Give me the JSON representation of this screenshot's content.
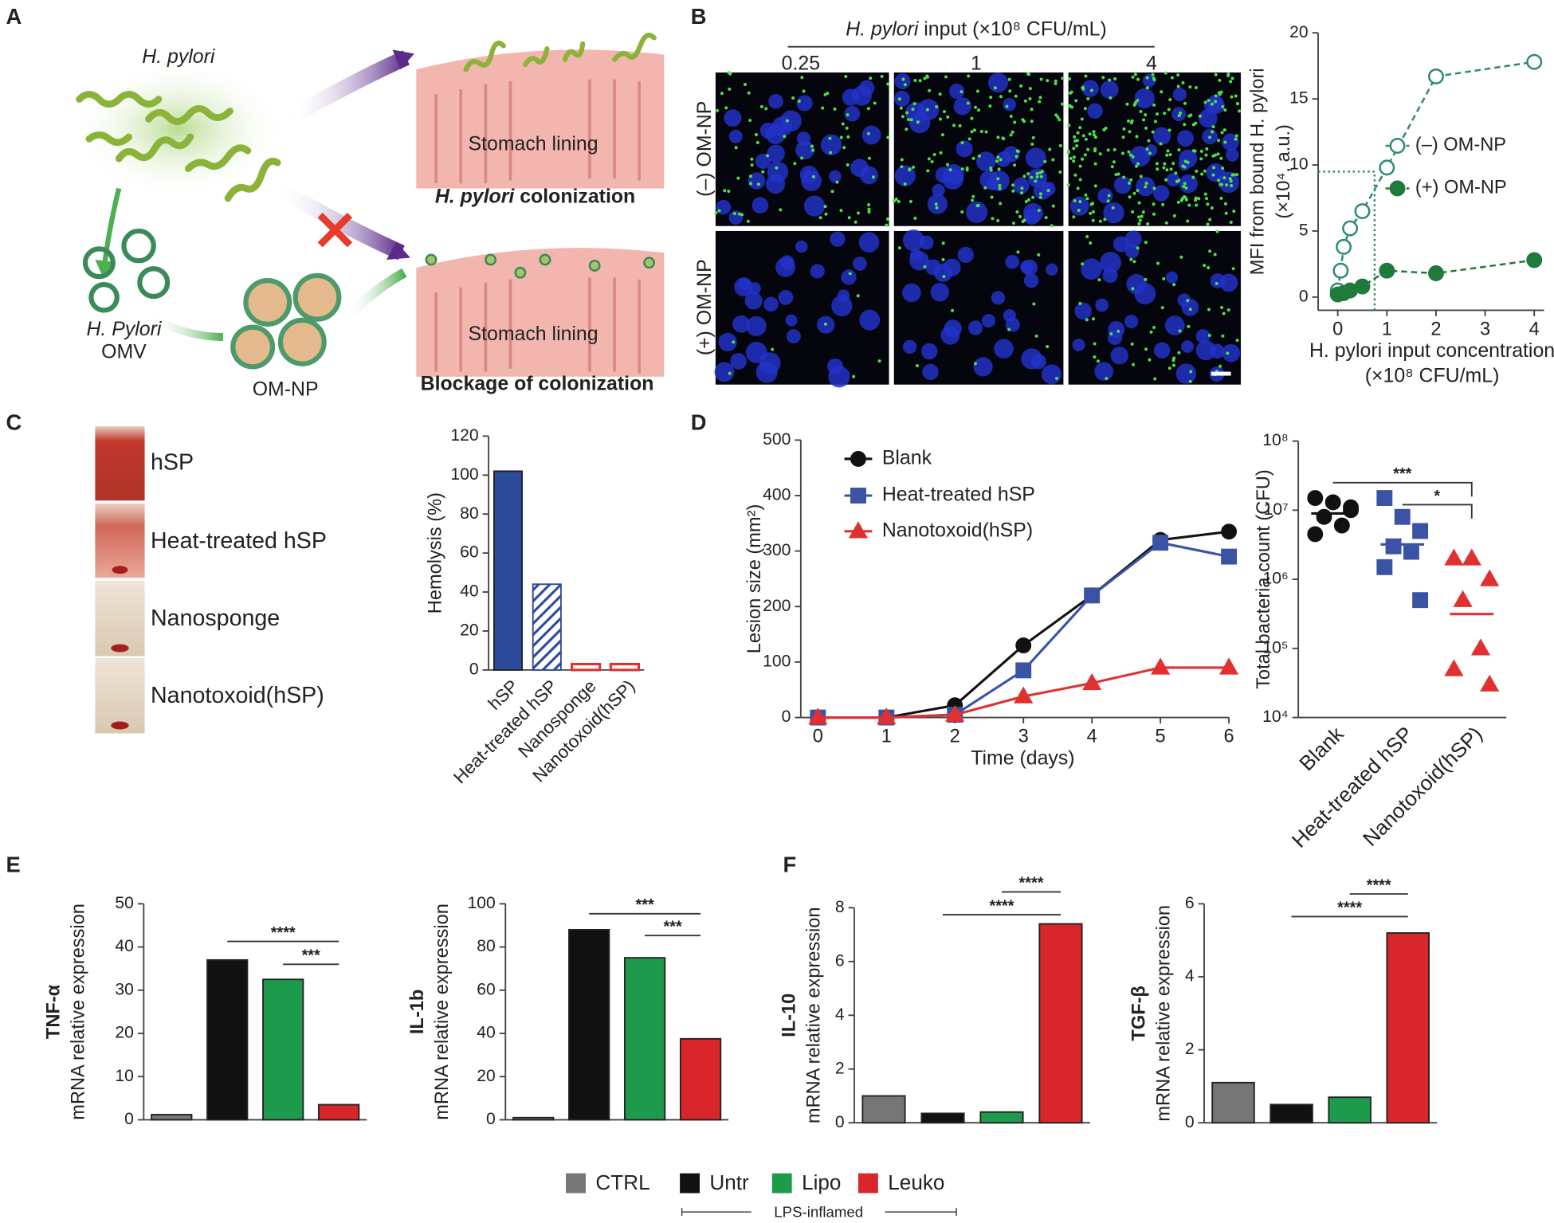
{
  "labels": {
    "panels": [
      "A",
      "B",
      "C",
      "D",
      "E",
      "F"
    ],
    "a": {
      "bacteria": "H. pylori",
      "omv": [
        "H. Pylori",
        "OMV"
      ],
      "omnp": "OM-NP",
      "lining_top": "Stomach lining",
      "lining_bottom": "Stomach lining",
      "colonization_species": "H. pylori",
      "colonization": " colonization",
      "blockage": "Blockage of colonization"
    },
    "b": {
      "input_species": "H. pylori",
      "input": " input (×10⁸ CFU/mL)",
      "columns": [
        "0.25",
        "1",
        "4"
      ],
      "rows": [
        "(–) OM-NP",
        "(+) OM-NP"
      ]
    },
    "c": {
      "tubes": [
        "hSP",
        "Heat-treated hSP",
        "Nanosponge",
        "Nanotoxoid(hSP)"
      ]
    }
  },
  "legend": {
    "items": [
      {
        "name": "CTRL",
        "color": "#767676"
      },
      {
        "name": "Untr",
        "color": "#111111"
      },
      {
        "name": "Lipo",
        "color": "#1e9a4c"
      },
      {
        "name": "Leuko",
        "color": "#d9262b"
      }
    ],
    "note": "LPS-inflamed"
  },
  "chart_data": [
    {
      "type": "scatter",
      "ylabel": [
        "MFI from bound H. pylori",
        "(×10⁴, a.u.)"
      ],
      "xlabel": [
        "H. pylori input concentration",
        "(×10⁸ CFU/mL)"
      ],
      "xlim": [
        -0.4,
        4.2
      ],
      "xticks": [
        0,
        1,
        2,
        3,
        4
      ],
      "ylim": [
        -1,
        20
      ],
      "yticks": [
        0,
        5,
        10,
        15,
        20
      ],
      "reference": {
        "x": 0.75,
        "y": 9.5
      },
      "series": [
        {
          "name": "(–) OM-NP",
          "color": "#2e8b6e",
          "filled": false,
          "x": [
            0,
            0.06,
            0.12,
            0.25,
            0.5,
            1,
            2,
            4
          ],
          "values": [
            0.5,
            2,
            3.8,
            5.2,
            6.5,
            9.8,
            16.7,
            17.8
          ]
        },
        {
          "name": "(+) OM-NP",
          "color": "#1f7a3c",
          "filled": true,
          "x": [
            0,
            0.12,
            0.25,
            0.5,
            1,
            2,
            4
          ],
          "values": [
            0.2,
            0.3,
            0.5,
            0.8,
            2,
            1.8,
            2.8
          ]
        }
      ]
    },
    {
      "type": "bar",
      "ylabel": "Hemolysis (%)",
      "categories": [
        "hSP",
        "Heat-treated hSP",
        "Nanosponge",
        "Nanotoxoid(hSP)"
      ],
      "values": [
        102,
        44,
        3,
        3
      ],
      "colors": [
        "#2b4a9a",
        "#2b4a9a",
        "#e03030",
        "#e03030"
      ],
      "fill_styles": [
        "solid",
        "hatch",
        "outline",
        "outline"
      ],
      "ylim": [
        0,
        120
      ],
      "yticks": [
        0,
        20,
        40,
        60,
        80,
        100,
        120
      ]
    },
    {
      "type": "line",
      "ylabel": "Lesion size (mm²)",
      "xlabel": "Time (days)",
      "x": [
        0,
        1,
        2,
        3,
        4,
        5,
        6
      ],
      "xlim": [
        -0.25,
        6
      ],
      "xticks": [
        0,
        1,
        2,
        3,
        4,
        5,
        6
      ],
      "ylim": [
        0,
        500
      ],
      "yticks": [
        0,
        100,
        200,
        300,
        400,
        500
      ],
      "series": [
        {
          "name": "Blank",
          "color": "#111111",
          "marker": "circle",
          "values": [
            0,
            0,
            22,
            130,
            220,
            320,
            335
          ]
        },
        {
          "name": "Heat-treated hSP",
          "color": "#3a53a4",
          "marker": "square",
          "values": [
            0,
            0,
            5,
            85,
            220,
            315,
            290
          ]
        },
        {
          "name": "Nanotoxoid(hSP)",
          "color": "#e03030",
          "marker": "triangle",
          "values": [
            0,
            0,
            5,
            38,
            62,
            90,
            90
          ]
        }
      ]
    },
    {
      "type": "strip",
      "log_y": true,
      "ylabel": "Total bacteria count (CFU)",
      "categories": [
        "Blank",
        "Heat-treated hSP",
        "Nanotoxoid(hSP)"
      ],
      "ylim": [
        10000,
        100000000
      ],
      "yticks": [
        {
          "value": 10000,
          "label": "10⁴"
        },
        {
          "value": 100000,
          "label": "10⁵"
        },
        {
          "value": 1000000,
          "label": "10⁶"
        },
        {
          "value": 10000000,
          "label": "10⁷"
        },
        {
          "value": 100000000,
          "label": "10⁸"
        }
      ],
      "series": [
        {
          "name": "Blank",
          "color": "#111111",
          "marker": "circle",
          "values": [
            15000000,
            13000000,
            10000000,
            8000000,
            6000000,
            4500000,
            11000000
          ]
        },
        {
          "name": "Heat-treated hSP",
          "color": "#3a53a4",
          "marker": "square",
          "values": [
            15000000,
            8000000,
            5000000,
            3000000,
            2500000,
            1500000,
            500000
          ]
        },
        {
          "name": "Nanotoxoid(hSP)",
          "color": "#e03030",
          "marker": "triangle",
          "values": [
            2000000,
            2000000,
            1000000,
            500000,
            100000,
            50000,
            30000
          ]
        }
      ],
      "annotations": [
        {
          "text": "***",
          "from": 0,
          "to": 2,
          "y": 25000000
        },
        {
          "text": "*",
          "from": 1,
          "to": 2,
          "y": 12000000
        }
      ]
    },
    {
      "type": "bar",
      "ylabel": [
        "TNF-α",
        "mRNA relative expression"
      ],
      "values": [
        1.2,
        37,
        32.5,
        3.5
      ],
      "ylim": [
        0,
        50
      ],
      "yticks": [
        0,
        10,
        20,
        30,
        40,
        50
      ],
      "annotations": [
        {
          "text": "****",
          "from": 1,
          "to": 3,
          "y": 41.3
        },
        {
          "text": "***",
          "from": 2,
          "to": 3,
          "y": 36
        }
      ]
    },
    {
      "type": "bar",
      "ylabel": [
        "IL-1b",
        "mRNA relative expression"
      ],
      "values": [
        1,
        88,
        75,
        37.5
      ],
      "ylim": [
        0,
        100
      ],
      "yticks": [
        0,
        20,
        40,
        60,
        80,
        100
      ],
      "annotations": [
        {
          "text": "***",
          "from": 1,
          "to": 3,
          "y": 95.4
        },
        {
          "text": "***",
          "from": 2,
          "to": 3,
          "y": 85.3
        }
      ]
    },
    {
      "type": "bar",
      "ylabel": [
        "IL-10",
        "mRNA relative expression"
      ],
      "values": [
        1,
        0.35,
        0.4,
        7.4
      ],
      "ylim": [
        0,
        8
      ],
      "yticks": [
        0,
        2,
        4,
        6,
        8
      ],
      "annotations": [
        {
          "text": "****",
          "from": 1,
          "to": 3,
          "y": 7.74
        },
        {
          "text": "****",
          "from": 2,
          "to": 3,
          "y": 8.59
        }
      ]
    },
    {
      "type": "bar",
      "ylabel": [
        "TGF-β",
        "mRNA relative expression"
      ],
      "values": [
        1.1,
        0.5,
        0.7,
        5.2
      ],
      "ylim": [
        0,
        6
      ],
      "yticks": [
        0,
        2,
        4,
        6
      ],
      "annotations": [
        {
          "text": "****",
          "from": 1,
          "to": 3,
          "y": 5.65
        },
        {
          "text": "****",
          "from": 2,
          "to": 3,
          "y": 6.27
        }
      ]
    }
  ]
}
